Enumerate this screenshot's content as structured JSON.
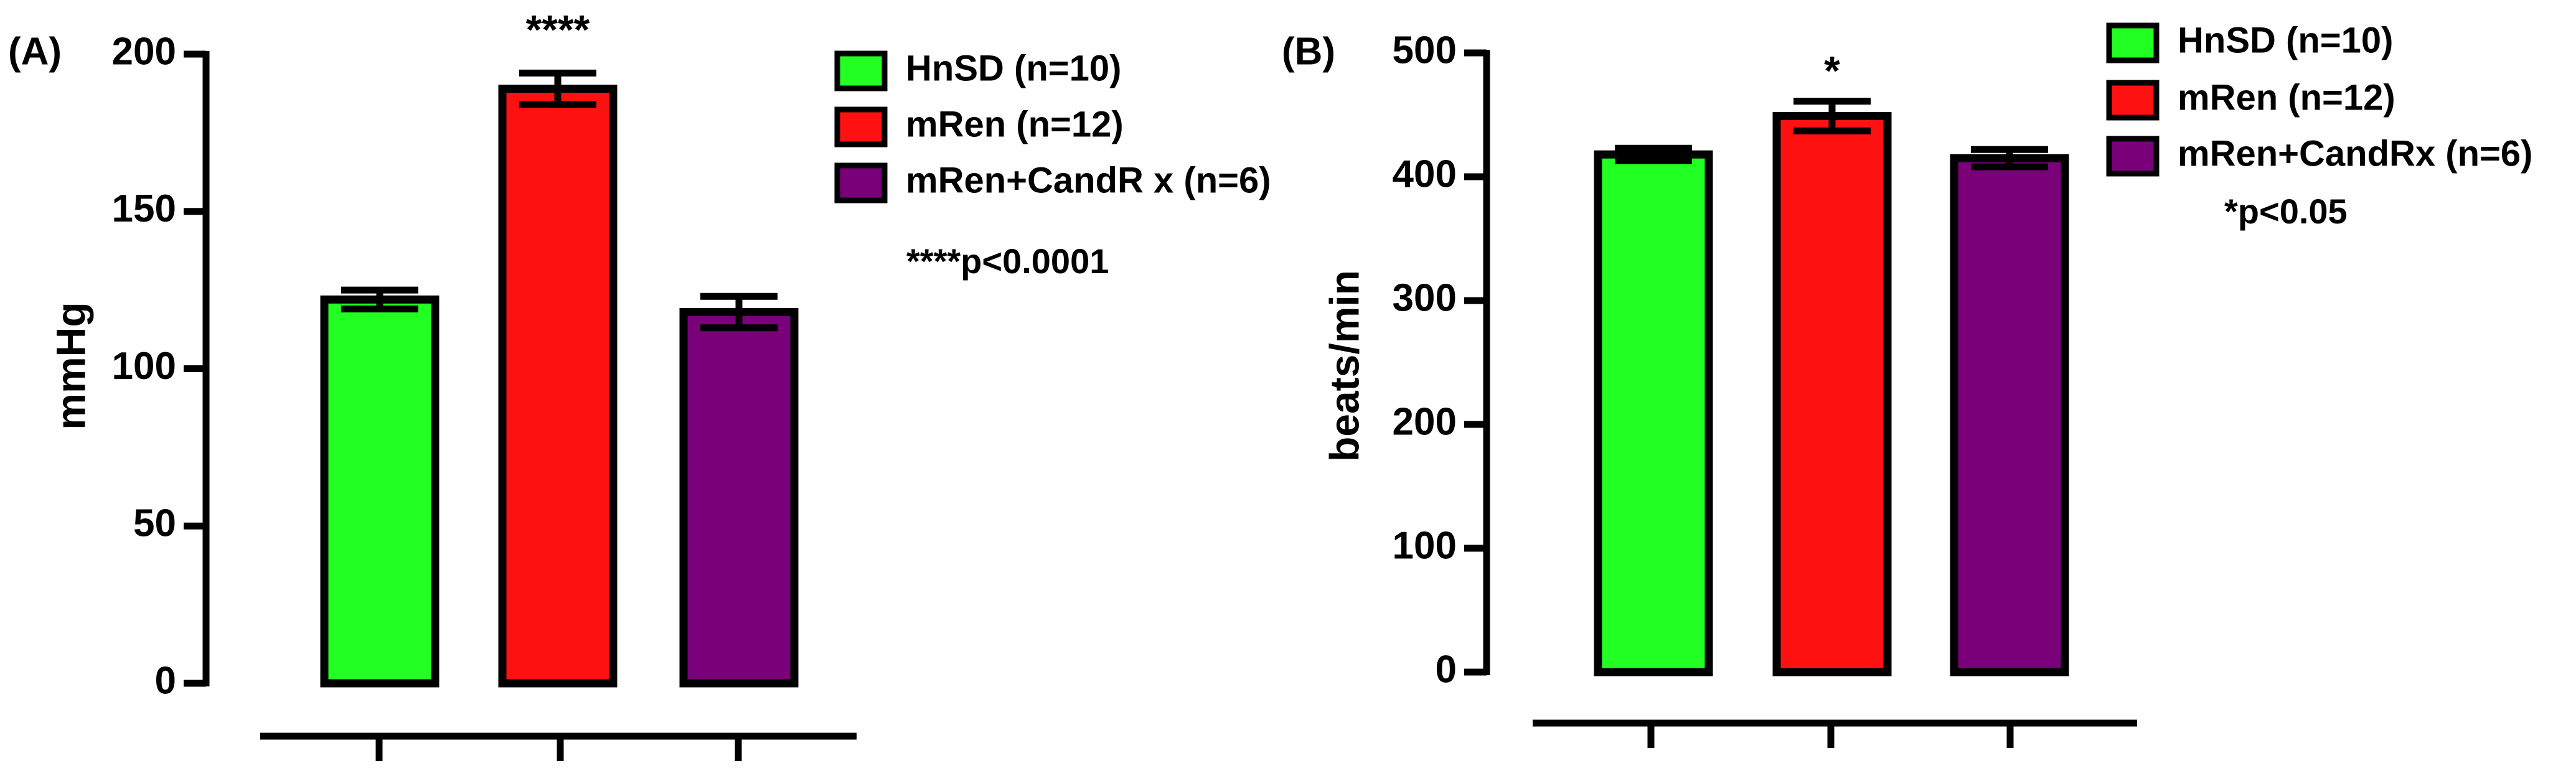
{
  "chart_data": [
    {
      "type": "bar",
      "panel_label": "(A)",
      "ylabel": "mmHg",
      "annotation": "****",
      "note": "****p<0.0001",
      "series": [
        {
          "name": "HnSD (n=10)",
          "color": "#22ff22",
          "values": [
            122
          ],
          "errors": [
            3
          ]
        },
        {
          "name": "mRen (n=12)",
          "color": "#ff1111",
          "values": [
            189
          ],
          "errors": [
            5
          ]
        },
        {
          "name": "mRen+CandR x (n=6)",
          "color": "#7a007a",
          "values": [
            118
          ],
          "errors": [
            5
          ]
        }
      ],
      "ylim": [
        0,
        200
      ],
      "yticks": [
        0,
        50,
        100,
        150,
        200
      ]
    },
    {
      "type": "bar",
      "panel_label": "(B)",
      "ylabel": "beats/min",
      "annotation": "*",
      "note": "*p<0.05",
      "series": [
        {
          "name": "HnSD (n=10)",
          "color": "#22ff22",
          "values": [
            418
          ],
          "errors": [
            5
          ]
        },
        {
          "name": "mRen (n=12)",
          "color": "#ff1111",
          "values": [
            449
          ],
          "errors": [
            12
          ]
        },
        {
          "name": "mRen+CandRx (n=6)",
          "color": "#7a007a",
          "values": [
            415
          ],
          "errors": [
            7
          ]
        }
      ],
      "ylim": [
        0,
        500
      ],
      "yticks": [
        0,
        100,
        200,
        300,
        400,
        500
      ]
    }
  ]
}
